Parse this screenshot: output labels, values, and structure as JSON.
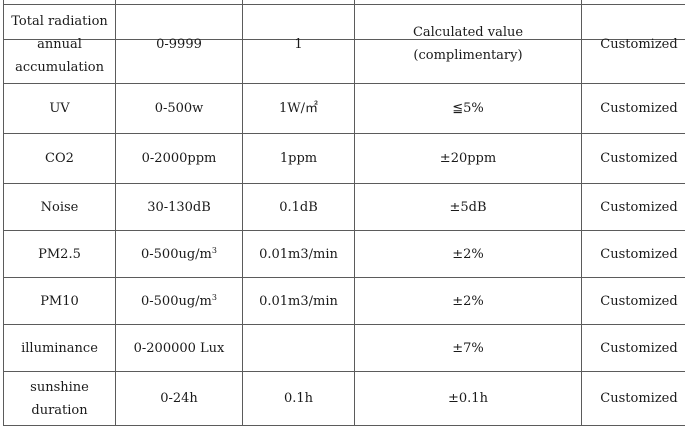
{
  "rows": [
    {
      "parameter": "Total radiation\nannual\naccumulation",
      "range": "0-9999",
      "resolution": "1",
      "accuracy": "Calculated value\n(complimentary)",
      "option": "Customized"
    },
    {
      "parameter": "UV",
      "range": "0-500w",
      "resolution": "1W/㎡",
      "accuracy": "≦5%",
      "option": "Customized"
    },
    {
      "parameter": "CO2",
      "range": "0-2000ppm",
      "resolution": "1ppm",
      "accuracy": "±20ppm",
      "option": "Customized"
    },
    {
      "parameter": "Noise",
      "range": "30-130dB",
      "resolution": "0.1dB",
      "accuracy": "±5dB",
      "option": "Customized"
    },
    {
      "parameter": "PM2.5",
      "range": "0-500ug/m",
      "range_sup": "3",
      "resolution": "0.01m3/min",
      "accuracy": "±2%",
      "option": "Customized"
    },
    {
      "parameter": "PM10",
      "range": "0-500ug/m",
      "range_sup": "3",
      "resolution": "0.01m3/min",
      "accuracy": "±2%",
      "option": "Customized"
    },
    {
      "parameter": "illuminance",
      "range": "0-200000 Lux",
      "resolution": "",
      "accuracy": "±7%",
      "option": "Customized"
    },
    {
      "parameter": "sunshine\nduration",
      "range": "0-24h",
      "resolution": "0.1h",
      "accuracy": "±0.1h",
      "option": "Customized"
    }
  ]
}
